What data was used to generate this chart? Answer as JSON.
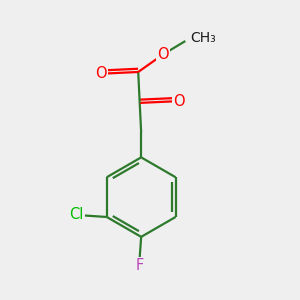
{
  "bg_color": "#efefef",
  "bond_color": "#2d7a2d",
  "bond_width": 1.6,
  "atom_colors": {
    "O": "#ff0000",
    "Cl": "#00bb00",
    "F": "#bb44bb",
    "C": "#1a1a1a"
  },
  "font_size": 10.5,
  "figsize": [
    3.0,
    3.0
  ],
  "dpi": 100
}
